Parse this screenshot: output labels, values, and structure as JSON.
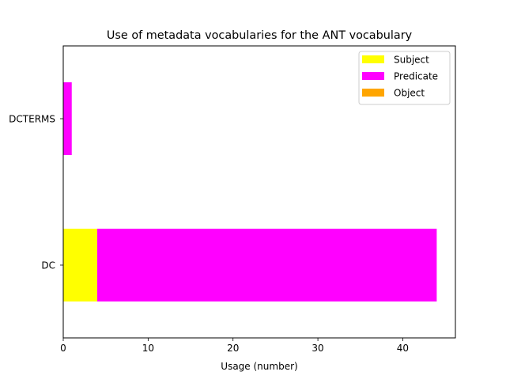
{
  "chart_data": {
    "type": "bar",
    "orientation": "horizontal",
    "stacked": true,
    "title": "Use of metadata vocabularies for the ANT vocabulary",
    "xlabel": "Usage (number)",
    "ylabel": "",
    "categories": [
      "DC",
      "DCTERMS"
    ],
    "series": [
      {
        "name": "Subject",
        "values": [
          4,
          0
        ],
        "color": "#ffff00"
      },
      {
        "name": "Predicate",
        "values": [
          40,
          1
        ],
        "color": "#ff00ff"
      },
      {
        "name": "Object",
        "values": [
          0,
          0
        ],
        "color": "#ffa500"
      }
    ],
    "xlim": [
      0,
      46.2
    ],
    "xticks": [
      "0",
      "10",
      "20",
      "30",
      "40"
    ],
    "grid": false,
    "legend_position": "top-right"
  }
}
